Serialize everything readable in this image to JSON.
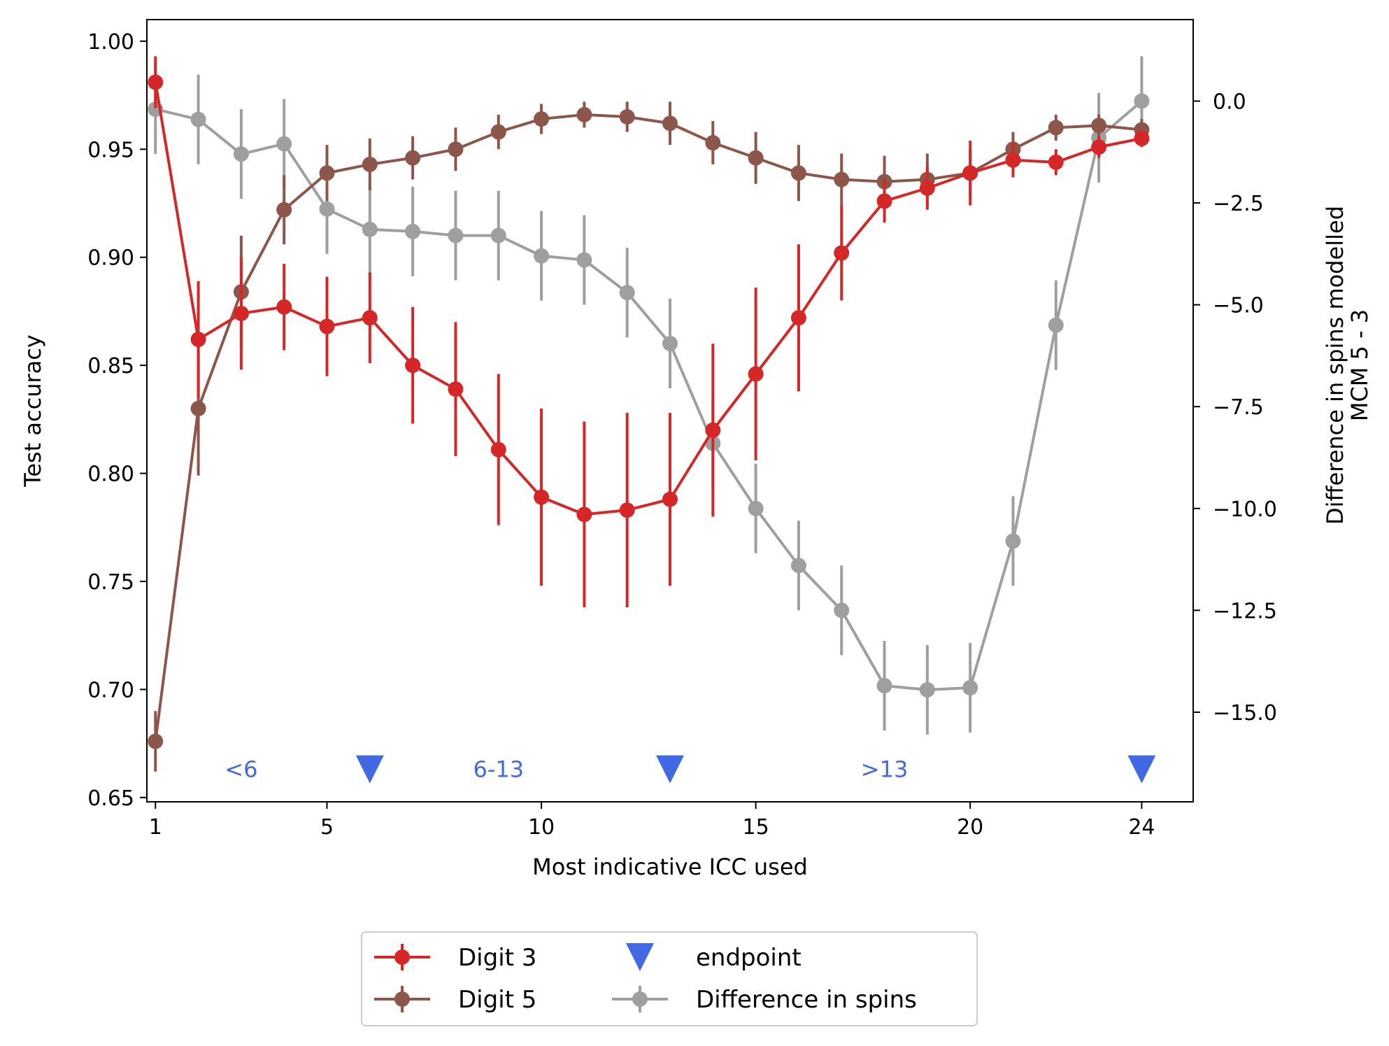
{
  "chart_data": {
    "type": "line",
    "xlabel": "Most indicative ICC used",
    "ylabel": "Test accuracy",
    "y2label": [
      "Difference in spins modelled",
      "MCM 5 - 3"
    ],
    "xlim": [
      0.8,
      25.2
    ],
    "ylim": [
      0.648,
      1.01
    ],
    "y2lim": [
      -17.2,
      2.0
    ],
    "x_ticks": [
      1,
      5,
      10,
      15,
      20,
      24
    ],
    "y_ticks": [
      0.65,
      0.7,
      0.75,
      0.8,
      0.85,
      0.9,
      0.95,
      1.0
    ],
    "y_tick_labels": [
      "0.65",
      "0.70",
      "0.75",
      "0.80",
      "0.85",
      "0.90",
      "0.95",
      "1.00"
    ],
    "y2_ticks": [
      0.0,
      -2.5,
      -5.0,
      -7.5,
      -10.0,
      -12.5,
      -15.0
    ],
    "y2_tick_labels": [
      "0.0",
      "−2.5",
      "−5.0",
      "−7.5",
      "−10.0",
      "−12.5",
      "−15.0"
    ],
    "x": [
      1,
      2,
      3,
      4,
      5,
      6,
      7,
      8,
      9,
      10,
      11,
      12,
      13,
      14,
      15,
      16,
      17,
      18,
      19,
      20,
      21,
      22,
      23,
      24
    ],
    "series": [
      {
        "name": "Digit 3",
        "axis": "left",
        "color": "#d62728",
        "values": [
          0.981,
          0.862,
          0.874,
          0.877,
          0.868,
          0.872,
          0.85,
          0.839,
          0.811,
          0.789,
          0.781,
          0.783,
          0.788,
          0.82,
          0.846,
          0.872,
          0.902,
          0.926,
          0.932,
          0.939,
          0.945,
          0.944,
          0.951,
          0.955
        ],
        "errors": [
          0.012,
          0.027,
          0.026,
          0.02,
          0.023,
          0.021,
          0.027,
          0.031,
          0.035,
          0.041,
          0.043,
          0.045,
          0.04,
          0.04,
          0.04,
          0.034,
          0.022,
          0.01,
          0.01,
          0.015,
          0.008,
          0.006,
          0.005,
          0.004
        ]
      },
      {
        "name": "Digit 5",
        "axis": "left",
        "color": "#8c564b",
        "values": [
          0.676,
          0.83,
          0.884,
          0.922,
          0.939,
          0.943,
          0.946,
          0.95,
          0.958,
          0.964,
          0.966,
          0.965,
          0.962,
          0.953,
          0.946,
          0.939,
          0.936,
          0.935,
          0.936,
          0.939,
          0.95,
          0.96,
          0.961,
          0.959
        ],
        "errors": [
          0.014,
          0.031,
          0.026,
          0.016,
          0.013,
          0.012,
          0.01,
          0.01,
          0.008,
          0.007,
          0.006,
          0.007,
          0.01,
          0.01,
          0.012,
          0.013,
          0.012,
          0.012,
          0.012,
          0.011,
          0.008,
          0.006,
          0.005,
          0.005
        ]
      },
      {
        "name": "Difference in spins",
        "axis": "right",
        "color": "#7f7f7f",
        "opacity": 0.75,
        "values": [
          -0.2,
          -0.45,
          -1.3,
          -1.05,
          -2.65,
          -3.15,
          -3.2,
          -3.3,
          -3.3,
          -3.8,
          -3.9,
          -4.7,
          -5.95,
          -8.4,
          -10.0,
          -11.4,
          -12.5,
          -14.35,
          -14.45,
          -14.4,
          -10.8,
          -5.5,
          -0.9,
          0.0
        ],
        "errors": [
          1.1,
          1.1,
          1.1,
          1.1,
          1.1,
          1.1,
          1.1,
          1.1,
          1.1,
          1.1,
          1.1,
          1.1,
          1.1,
          1.1,
          1.1,
          1.1,
          1.1,
          1.1,
          1.1,
          1.1,
          1.1,
          1.1,
          1.1,
          1.1
        ]
      }
    ],
    "markers": {
      "name": "endpoint",
      "color": "#4169e1",
      "x": [
        6,
        13,
        24
      ],
      "y": 0.663
    },
    "annotations": [
      {
        "text": "<6",
        "x": 3.0,
        "y": 0.663
      },
      {
        "text": "6-13",
        "x": 9.0,
        "y": 0.663
      },
      {
        "text": ">13",
        "x": 18.0,
        "y": 0.663
      }
    ],
    "legend": {
      "placement": "bottom-center",
      "columns": 2,
      "entries": [
        "Digit 3",
        "Digit 5",
        "endpoint",
        "Difference in spins"
      ]
    },
    "grid": false
  }
}
